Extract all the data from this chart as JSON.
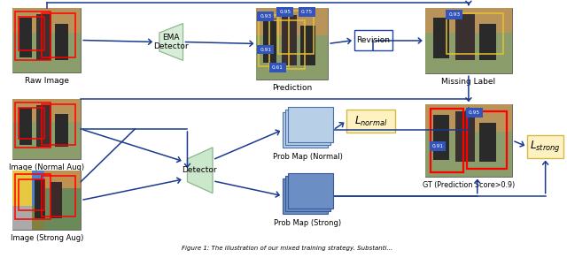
{
  "bg_color": "#ffffff",
  "arrow_color": "#1a3a8f",
  "ema_color": "#d4ecd4",
  "detector_color": "#c8e6c9",
  "prob_normal_color": "#b8cfe8",
  "prob_strong_color": "#6b8ec4",
  "loss_color": "#fef3c0",
  "loss_ec": "#d4b84a",
  "revision_ec": "#2244aa",
  "raw_image_label": "Raw Image",
  "image_normal_label": "Image (Normal Aug)",
  "image_strong_label": "Image (Strong Aug)",
  "ema_detector_label": "EMA\nDetector",
  "detector_label": "Detector",
  "prediction_label": "Prediction",
  "revision_label": "Revision",
  "missing_label_text": "Missing Label",
  "prob_map_normal_label": "Prob Map (Normal)",
  "prob_map_strong_label": "Prob Map (Strong)",
  "gt_label": "GT (Prediction Score>0.9)",
  "l_normal_label": "$L_{normal}$",
  "l_strong_label": "$L_{strong}$",
  "caption": "Figure 1: The illustration of our mixed training strategy. Substanti..."
}
